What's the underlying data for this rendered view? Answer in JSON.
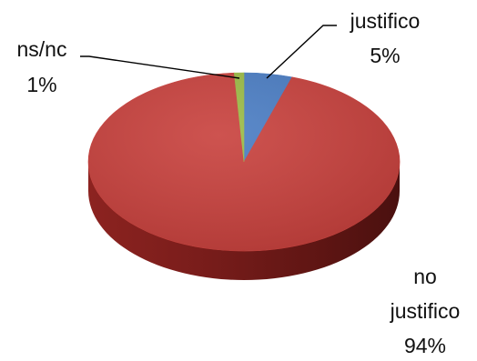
{
  "chart_data": {
    "type": "pie",
    "style": "3d",
    "title": "",
    "legend": "none",
    "slices": [
      {
        "label": [
          "justifico"
        ],
        "value": 5,
        "value_label": "5%",
        "color": "#4a7dc4"
      },
      {
        "label": [
          "no",
          "justifico"
        ],
        "value": 94,
        "value_label": "94%",
        "color": "#c8403c"
      },
      {
        "label": [
          "ns/nc"
        ],
        "value": 1,
        "value_label": "1%",
        "color": "#9bbb45"
      }
    ]
  }
}
